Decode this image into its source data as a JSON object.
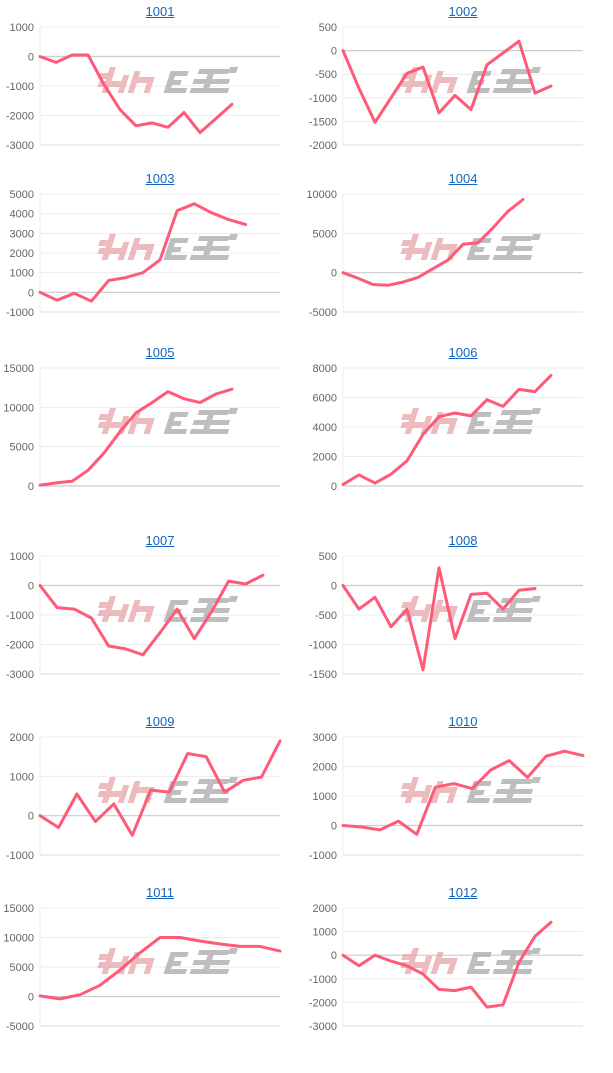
{
  "watermark": {
    "text": "みんかぶ",
    "colors": [
      "#e8a3a8",
      "#a9a9a9"
    ]
  },
  "chart_data": [
    {
      "type": "line",
      "title": "1001",
      "yticks": [
        1000,
        0,
        -1000,
        -2000,
        -3000
      ],
      "ylim": [
        -3000,
        1000
      ],
      "xlim": [
        0,
        15
      ],
      "color": "#ff5a78",
      "values": [
        0,
        -200,
        50,
        50,
        -950,
        -1800,
        -2350,
        -2250,
        -2400,
        -1900,
        -2580,
        -2100,
        -1620
      ]
    },
    {
      "type": "line",
      "title": "1002",
      "yticks": [
        500,
        0,
        -500,
        -1000,
        -1500,
        -2000
      ],
      "ylim": [
        -2000,
        500
      ],
      "xlim": [
        0,
        15
      ],
      "color": "#ff5a78",
      "values": [
        0,
        -800,
        -1520,
        -1000,
        -480,
        -350,
        -1320,
        -950,
        -1250,
        -300,
        -50,
        200,
        -900,
        -750
      ]
    },
    {
      "type": "line",
      "title": "1003",
      "yticks": [
        5000,
        4000,
        3000,
        2000,
        1000,
        0,
        -1000
      ],
      "ylim": [
        -1000,
        5000
      ],
      "xlim": [
        0,
        14
      ],
      "color": "#ff5a78",
      "values": [
        0,
        -400,
        -50,
        -450,
        600,
        750,
        1000,
        1650,
        4150,
        4500,
        4050,
        3700,
        3450
      ]
    },
    {
      "type": "line",
      "title": "1004",
      "yticks": [
        10000,
        5000,
        0,
        -5000
      ],
      "ylim": [
        -5000,
        10000
      ],
      "xlim": [
        0,
        16
      ],
      "color": "#ff5a78",
      "values": [
        0,
        -700,
        -1500,
        -1600,
        -1200,
        -600,
        500,
        1600,
        3600,
        3800,
        5700,
        7800,
        9300
      ]
    },
    {
      "type": "line",
      "title": "1005",
      "yticks": [
        15000,
        10000,
        5000,
        0
      ],
      "ylim": [
        0,
        15000
      ],
      "xlim": [
        0,
        15
      ],
      "color": "#ff5a78",
      "values": [
        100,
        400,
        600,
        2000,
        4200,
        6900,
        9300,
        10600,
        12000,
        11100,
        10600,
        11700,
        12300
      ]
    },
    {
      "type": "line",
      "title": "1006",
      "yticks": [
        8000,
        6000,
        4000,
        2000,
        0
      ],
      "ylim": [
        0,
        8000
      ],
      "xlim": [
        0,
        15
      ],
      "color": "#ff5a78",
      "values": [
        100,
        750,
        200,
        800,
        1700,
        3500,
        4700,
        4950,
        4750,
        5850,
        5400,
        6550,
        6400,
        7500
      ]
    },
    {
      "type": "line",
      "title": "1007",
      "yticks": [
        1000,
        0,
        -1000,
        -2000,
        -3000
      ],
      "ylim": [
        -3000,
        1000
      ],
      "xlim": [
        0,
        14
      ],
      "color": "#ff5a78",
      "values": [
        0,
        -750,
        -800,
        -1100,
        -2050,
        -2150,
        -2350,
        -1600,
        -800,
        -1800,
        -900,
        150,
        50,
        350
      ]
    },
    {
      "type": "line",
      "title": "1008",
      "yticks": [
        500,
        0,
        -500,
        -1000,
        -1500
      ],
      "ylim": [
        -1500,
        500
      ],
      "xlim": [
        0,
        15
      ],
      "color": "#ff5a78",
      "values": [
        0,
        -400,
        -200,
        -700,
        -400,
        -1430,
        300,
        -900,
        -150,
        -130,
        -400,
        -80,
        -50
      ]
    },
    {
      "type": "line",
      "title": "1009",
      "yticks": [
        2000,
        1000,
        0,
        -1000
      ],
      "ylim": [
        -1000,
        2000
      ],
      "xlim": [
        0,
        13
      ],
      "color": "#ff5a78",
      "values": [
        0,
        -300,
        550,
        -150,
        300,
        -500,
        650,
        600,
        1580,
        1500,
        600,
        900,
        980,
        1900
      ]
    },
    {
      "type": "line",
      "title": "1010",
      "yticks": [
        3000,
        2000,
        1000,
        0,
        -1000
      ],
      "ylim": [
        -1000,
        3000
      ],
      "xlim": [
        0,
        13
      ],
      "color": "#ff5a78",
      "values": [
        0,
        -50,
        -150,
        150,
        -300,
        1300,
        1420,
        1250,
        1880,
        2200,
        1630,
        2350,
        2520,
        2370
      ]
    },
    {
      "type": "line",
      "title": "1011",
      "yticks": [
        15000,
        10000,
        5000,
        0,
        -5000
      ],
      "ylim": [
        -5000,
        15000
      ],
      "xlim": [
        0,
        12
      ],
      "color": "#ff5a78",
      "values": [
        100,
        -400,
        300,
        1900,
        4500,
        7400,
        10000,
        10000,
        9400,
        8900,
        8500,
        8500,
        7700
      ]
    },
    {
      "type": "line",
      "title": "1012",
      "yticks": [
        2000,
        1000,
        0,
        -1000,
        -2000,
        -3000
      ],
      "ylim": [
        -3000,
        2000
      ],
      "xlim": [
        0,
        15
      ],
      "color": "#ff5a78",
      "values": [
        0,
        -450,
        0,
        -250,
        -450,
        -800,
        -1450,
        -1500,
        -1350,
        -2200,
        -2100,
        -300,
        800,
        1400
      ]
    }
  ]
}
